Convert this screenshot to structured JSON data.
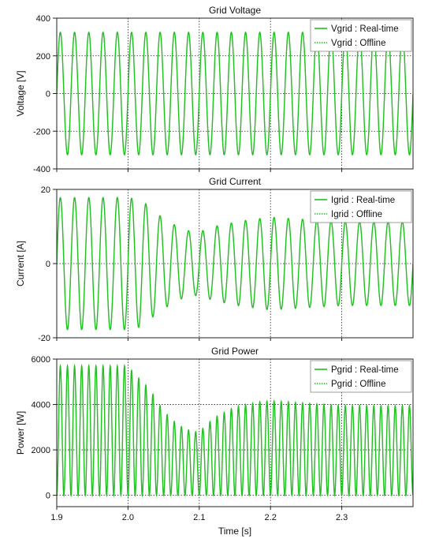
{
  "figure": {
    "xlabel": "Time [s]"
  },
  "chart_data": [
    {
      "type": "line",
      "title": "Grid Voltage",
      "ylabel": "Voltage [V]",
      "xlim": [
        1.9,
        2.4
      ],
      "ylim": [
        -400,
        400
      ],
      "x_ticks": [
        1.9,
        2.0,
        2.1,
        2.2,
        2.3
      ],
      "y_ticks": [
        -400,
        -200,
        0,
        200,
        400
      ],
      "grid": true,
      "legend_position": "top-right",
      "frequency_hz": 50,
      "series": [
        {
          "name": "Vgrid : Real-time",
          "style": "solid",
          "color": "#22c022",
          "envelope": {
            "t": [
              1.9,
              2.4
            ],
            "amplitude": [
              325,
              325
            ]
          }
        },
        {
          "name": "Vgrid : Offline",
          "style": "dotted",
          "color": "#22c022",
          "envelope": {
            "t": [
              1.9,
              2.4
            ],
            "amplitude": [
              325,
              325
            ]
          }
        }
      ]
    },
    {
      "type": "line",
      "title": "Grid Current",
      "ylabel": "Current [A]",
      "xlim": [
        1.9,
        2.4
      ],
      "ylim": [
        -20,
        20
      ],
      "x_ticks": [
        1.9,
        2.0,
        2.1,
        2.2,
        2.3
      ],
      "y_ticks": [
        -20,
        0,
        20
      ],
      "grid": true,
      "legend_position": "top-right",
      "frequency_hz": 50,
      "series": [
        {
          "name": "Igrid : Real-time",
          "style": "solid",
          "color": "#22c022",
          "envelope": {
            "t": [
              1.9,
              2.0,
              2.02,
              2.04,
              2.06,
              2.08,
              2.1,
              2.12,
              2.16,
              2.2,
              2.24,
              2.3,
              2.4
            ],
            "amplitude": [
              17.8,
              17.8,
              17.0,
              13.5,
              11.0,
              9.0,
              8.5,
              10.0,
              11.5,
              12.5,
              12.0,
              11.3,
              11.3
            ]
          }
        },
        {
          "name": "Igrid : Offline",
          "style": "dotted",
          "color": "#22c022",
          "envelope": {
            "t": [
              1.9,
              2.0,
              2.02,
              2.04,
              2.06,
              2.08,
              2.1,
              2.12,
              2.16,
              2.2,
              2.24,
              2.3,
              2.4
            ],
            "amplitude": [
              17.8,
              17.8,
              17.0,
              13.5,
              11.0,
              9.0,
              8.5,
              10.0,
              11.5,
              12.5,
              12.0,
              11.3,
              11.3
            ]
          }
        }
      ]
    },
    {
      "type": "line",
      "title": "Grid Power",
      "ylabel": "Power [W]",
      "xlim": [
        1.9,
        2.4
      ],
      "ylim": [
        -500,
        6000
      ],
      "x_ticks": [
        1.9,
        2.0,
        2.1,
        2.2,
        2.3
      ],
      "y_ticks": [
        0,
        2000,
        4000,
        6000
      ],
      "grid": true,
      "legend_position": "top-right",
      "frequency_hz": 100,
      "min_value": 0,
      "series": [
        {
          "name": "Pgrid : Real-time",
          "style": "solid",
          "color": "#22c022",
          "envelope": {
            "t": [
              1.9,
              2.0,
              2.01,
              2.03,
              2.05,
              2.07,
              2.09,
              2.1,
              2.12,
              2.15,
              2.19,
              2.21,
              2.25,
              2.3,
              2.4
            ],
            "peak": [
              5700,
              5700,
              5300,
              4700,
              3700,
              3100,
              2800,
              2800,
              3400,
              3900,
              4150,
              4150,
              4050,
              3950,
              3950
            ]
          }
        },
        {
          "name": "Pgrid : Offline",
          "style": "dotted",
          "color": "#22c022",
          "envelope": {
            "t": [
              1.9,
              2.0,
              2.01,
              2.03,
              2.05,
              2.07,
              2.09,
              2.1,
              2.12,
              2.15,
              2.19,
              2.21,
              2.25,
              2.3,
              2.4
            ],
            "peak": [
              5700,
              5700,
              5300,
              4700,
              3700,
              3100,
              2800,
              2800,
              3400,
              3900,
              4150,
              4150,
              4050,
              3950,
              3950
            ]
          }
        }
      ]
    }
  ]
}
